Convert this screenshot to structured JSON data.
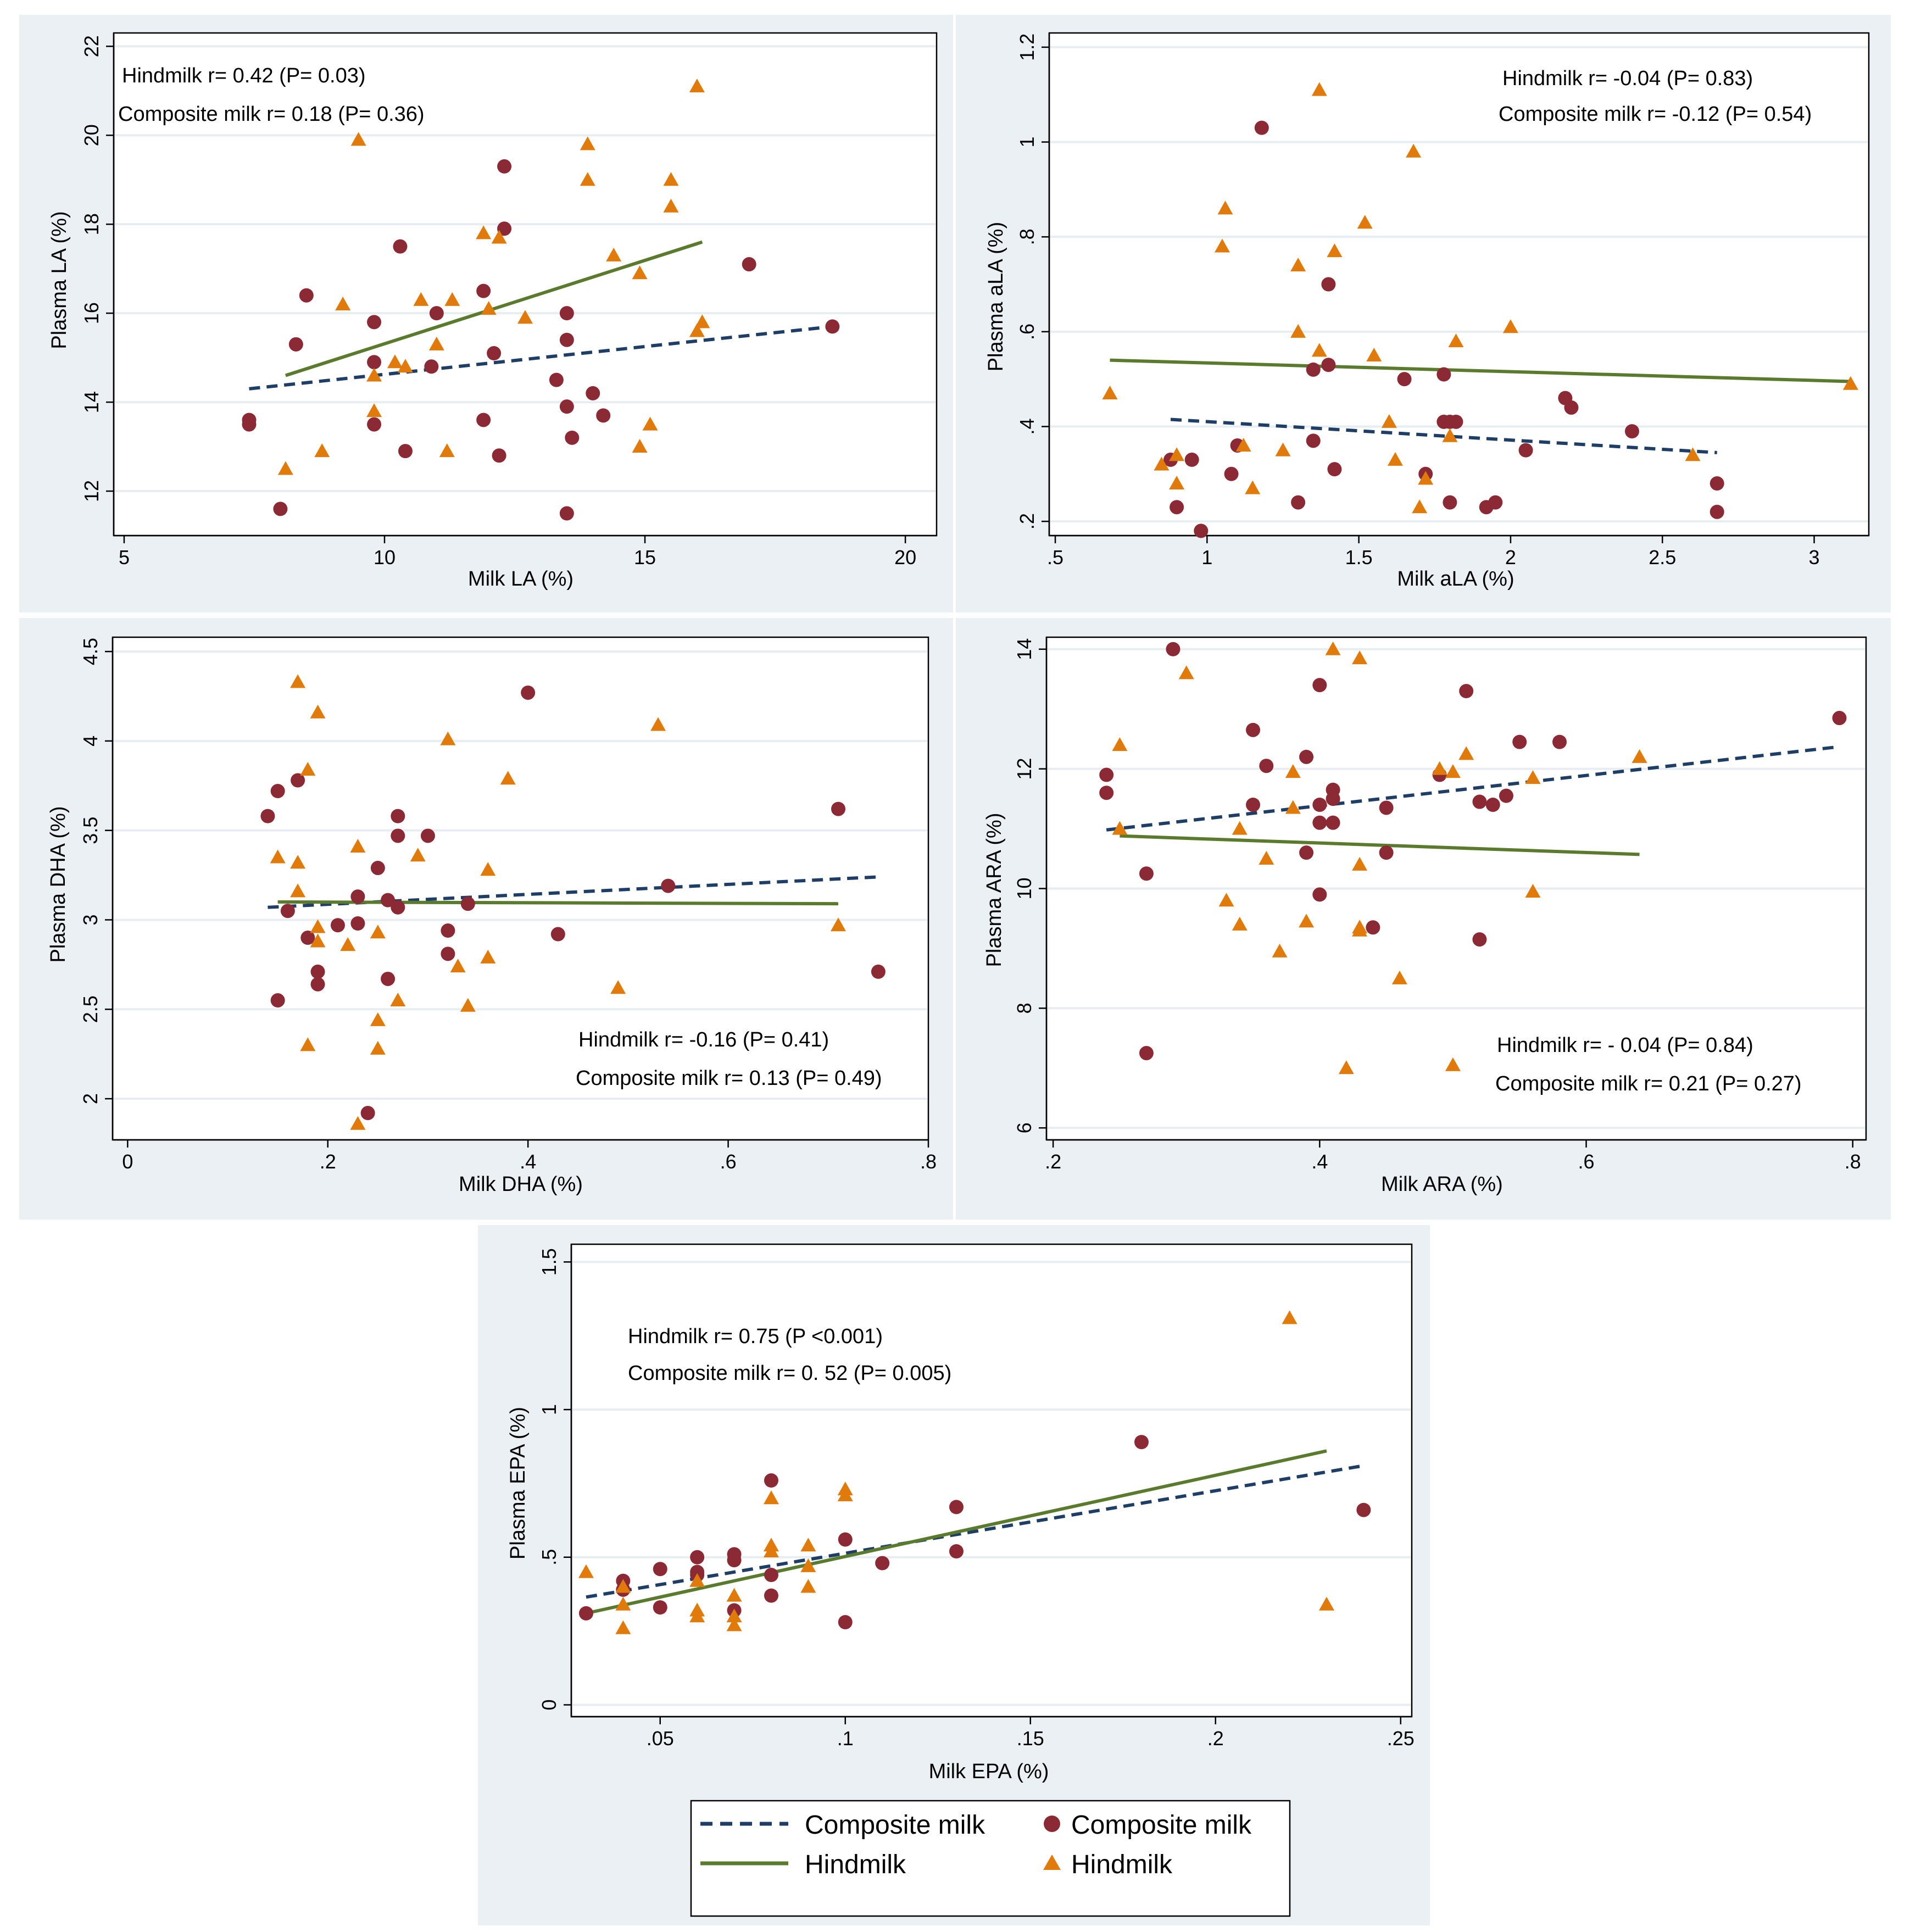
{
  "colors": {
    "composite_marker": "#8b2a34",
    "hindmilk_marker": "#e07b0b",
    "composite_line": "#1f3e66",
    "hindmilk_line": "#5a7a2e",
    "panel_background": "#eaf0f3"
  },
  "legend": {
    "composite_line_label": "Composite milk",
    "composite_marker_label": "Composite milk",
    "hindmilk_line_label": "Hindmilk",
    "hindmilk_marker_label": "Hindmilk"
  },
  "chart_data": [
    {
      "type": "scatter",
      "id": "la",
      "xlabel": "Milk LA (%)",
      "ylabel": "Plasma LA (%)",
      "xlim": [
        4.8,
        20.6
      ],
      "ylim": [
        11.0,
        22.3
      ],
      "xticks": [
        5,
        10,
        15,
        20
      ],
      "xtick_labels": [
        "5",
        "10",
        "15",
        "20"
      ],
      "yticks": [
        12,
        14,
        16,
        18,
        20,
        22
      ],
      "ytick_labels": [
        "12",
        "14",
        "16",
        "18",
        "20",
        "22"
      ],
      "annotations": [
        "Hindmilk r= 0.42 (P= 0.03)",
        "Composite milk  r= 0.18 (P= 0.36)"
      ],
      "composite_points": [
        [
          7.4,
          13.6
        ],
        [
          7.4,
          13.5
        ],
        [
          8.0,
          11.6
        ],
        [
          8.3,
          15.3
        ],
        [
          8.5,
          16.4
        ],
        [
          9.8,
          14.9
        ],
        [
          9.8,
          15.8
        ],
        [
          9.8,
          13.5
        ],
        [
          10.3,
          17.5
        ],
        [
          10.4,
          12.9
        ],
        [
          10.9,
          14.8
        ],
        [
          11.0,
          16.0
        ],
        [
          11.9,
          16.5
        ],
        [
          11.9,
          13.6
        ],
        [
          12.1,
          15.1
        ],
        [
          12.2,
          12.8
        ],
        [
          12.3,
          17.9
        ],
        [
          12.3,
          19.3
        ],
        [
          13.3,
          14.5
        ],
        [
          13.5,
          16.0
        ],
        [
          13.5,
          15.4
        ],
        [
          13.5,
          13.9
        ],
        [
          13.5,
          11.5
        ],
        [
          13.6,
          13.2
        ],
        [
          14.0,
          14.2
        ],
        [
          14.2,
          13.7
        ],
        [
          17.0,
          17.1
        ],
        [
          18.6,
          15.7
        ]
      ],
      "hindmilk_points": [
        [
          8.1,
          12.5
        ],
        [
          8.8,
          12.9
        ],
        [
          9.2,
          16.2
        ],
        [
          9.5,
          19.9
        ],
        [
          9.8,
          14.6
        ],
        [
          9.8,
          13.8
        ],
        [
          10.2,
          14.9
        ],
        [
          10.4,
          14.8
        ],
        [
          10.7,
          16.3
        ],
        [
          11.0,
          15.3
        ],
        [
          11.2,
          12.9
        ],
        [
          11.3,
          16.3
        ],
        [
          11.9,
          17.8
        ],
        [
          12.0,
          16.1
        ],
        [
          12.2,
          17.7
        ],
        [
          12.7,
          15.9
        ],
        [
          13.9,
          19.8
        ],
        [
          13.9,
          19.0
        ],
        [
          14.4,
          17.3
        ],
        [
          14.9,
          16.9
        ],
        [
          14.9,
          13.0
        ],
        [
          15.1,
          13.5
        ],
        [
          15.5,
          19.0
        ],
        [
          15.5,
          18.4
        ],
        [
          16.0,
          21.1
        ],
        [
          16.0,
          15.6
        ],
        [
          16.1,
          15.8
        ]
      ],
      "composite_fit": [
        [
          7.4,
          14.3
        ],
        [
          18.6,
          15.7
        ]
      ],
      "hindmilk_fit": [
        [
          8.1,
          14.6
        ],
        [
          16.1,
          17.6
        ]
      ]
    },
    {
      "type": "scatter",
      "id": "ala",
      "xlabel": "Milk aLA (%)",
      "ylabel": "Plasma aLA (%)",
      "xlim": [
        0.48,
        3.18
      ],
      "ylim": [
        0.17,
        1.23
      ],
      "xticks": [
        0.5,
        1,
        1.5,
        2,
        2.5,
        3
      ],
      "xtick_labels": [
        ".5",
        "1",
        "1.5",
        "2",
        "2.5",
        "3"
      ],
      "yticks": [
        0.2,
        0.4,
        0.6,
        0.8,
        1.0,
        1.2
      ],
      "ytick_labels": [
        ".2",
        ".4",
        ".6",
        ".8",
        "1",
        "1.2"
      ],
      "annotations": [
        "Hindmilk r= -0.04 (P= 0.83)",
        "Composite milk r= -0.12 (P= 0.54)"
      ],
      "composite_points": [
        [
          0.88,
          0.33
        ],
        [
          0.9,
          0.23
        ],
        [
          0.95,
          0.33
        ],
        [
          0.98,
          0.18
        ],
        [
          1.08,
          0.3
        ],
        [
          1.1,
          0.36
        ],
        [
          1.18,
          1.03
        ],
        [
          1.3,
          0.24
        ],
        [
          1.35,
          0.37
        ],
        [
          1.35,
          0.52
        ],
        [
          1.4,
          0.53
        ],
        [
          1.4,
          0.7
        ],
        [
          1.42,
          0.31
        ],
        [
          1.65,
          0.5
        ],
        [
          1.72,
          0.3
        ],
        [
          1.78,
          0.51
        ],
        [
          1.78,
          0.41
        ],
        [
          1.8,
          0.41
        ],
        [
          1.82,
          0.41
        ],
        [
          1.8,
          0.24
        ],
        [
          1.92,
          0.23
        ],
        [
          1.95,
          0.24
        ],
        [
          2.05,
          0.35
        ],
        [
          2.18,
          0.46
        ],
        [
          2.2,
          0.44
        ],
        [
          2.4,
          0.39
        ],
        [
          2.68,
          0.28
        ],
        [
          2.68,
          0.22
        ]
      ],
      "hindmilk_points": [
        [
          0.68,
          0.47
        ],
        [
          0.85,
          0.32
        ],
        [
          0.9,
          0.34
        ],
        [
          0.9,
          0.28
        ],
        [
          1.05,
          0.78
        ],
        [
          1.06,
          0.86
        ],
        [
          1.12,
          0.36
        ],
        [
          1.15,
          0.27
        ],
        [
          1.25,
          0.35
        ],
        [
          1.3,
          0.74
        ],
        [
          1.3,
          0.6
        ],
        [
          1.37,
          1.11
        ],
        [
          1.37,
          0.56
        ],
        [
          1.42,
          0.77
        ],
        [
          1.52,
          0.83
        ],
        [
          1.55,
          0.55
        ],
        [
          1.6,
          0.41
        ],
        [
          1.62,
          0.33
        ],
        [
          1.68,
          0.98
        ],
        [
          1.7,
          0.23
        ],
        [
          1.72,
          0.29
        ],
        [
          1.8,
          0.38
        ],
        [
          1.82,
          0.58
        ],
        [
          2.0,
          0.61
        ],
        [
          2.6,
          0.34
        ],
        [
          3.12,
          0.49
        ]
      ],
      "composite_fit": [
        [
          0.88,
          0.415
        ],
        [
          2.68,
          0.345
        ]
      ],
      "hindmilk_fit": [
        [
          0.68,
          0.54
        ],
        [
          3.12,
          0.495
        ]
      ]
    },
    {
      "type": "scatter",
      "id": "dha",
      "xlabel": "Milk DHA (%)",
      "ylabel": "Plasma DHA (%)",
      "xlim": [
        -0.015,
        0.8
      ],
      "ylim": [
        1.77,
        4.58
      ],
      "xticks": [
        0,
        0.2,
        0.4,
        0.6,
        0.8
      ],
      "xtick_labels": [
        "0",
        ".2",
        ".4",
        ".6",
        ".8"
      ],
      "yticks": [
        2,
        2.5,
        3,
        3.5,
        4,
        4.5
      ],
      "ytick_labels": [
        "2",
        "2.5",
        "3",
        "3.5",
        "4",
        "4.5"
      ],
      "annotations": [
        "Hindmilk r= -0.16 (P= 0.41)",
        "Composite milk r= 0.13 (P= 0.49)"
      ],
      "composite_points": [
        [
          0.14,
          3.58
        ],
        [
          0.15,
          3.72
        ],
        [
          0.15,
          2.55
        ],
        [
          0.16,
          3.05
        ],
        [
          0.17,
          3.78
        ],
        [
          0.18,
          2.9
        ],
        [
          0.19,
          2.71
        ],
        [
          0.19,
          2.64
        ],
        [
          0.21,
          2.97
        ],
        [
          0.23,
          3.13
        ],
        [
          0.23,
          2.98
        ],
        [
          0.24,
          1.92
        ],
        [
          0.25,
          3.29
        ],
        [
          0.26,
          3.11
        ],
        [
          0.26,
          2.67
        ],
        [
          0.27,
          3.58
        ],
        [
          0.27,
          3.47
        ],
        [
          0.27,
          3.07
        ],
        [
          0.3,
          3.47
        ],
        [
          0.32,
          2.94
        ],
        [
          0.32,
          2.81
        ],
        [
          0.34,
          3.09
        ],
        [
          0.4,
          4.27
        ],
        [
          0.43,
          2.92
        ],
        [
          0.54,
          3.19
        ],
        [
          0.71,
          3.62
        ],
        [
          0.75,
          2.71
        ]
      ],
      "hindmilk_points": [
        [
          0.15,
          3.35
        ],
        [
          0.17,
          4.33
        ],
        [
          0.17,
          3.32
        ],
        [
          0.17,
          3.16
        ],
        [
          0.18,
          3.84
        ],
        [
          0.18,
          2.3
        ],
        [
          0.19,
          4.16
        ],
        [
          0.19,
          2.96
        ],
        [
          0.19,
          2.88
        ],
        [
          0.22,
          2.86
        ],
        [
          0.23,
          3.41
        ],
        [
          0.23,
          1.86
        ],
        [
          0.25,
          2.93
        ],
        [
          0.25,
          2.44
        ],
        [
          0.25,
          2.28
        ],
        [
          0.27,
          2.55
        ],
        [
          0.29,
          3.36
        ],
        [
          0.32,
          4.01
        ],
        [
          0.33,
          2.74
        ],
        [
          0.34,
          2.52
        ],
        [
          0.36,
          3.28
        ],
        [
          0.36,
          2.79
        ],
        [
          0.38,
          3.79
        ],
        [
          0.49,
          2.62
        ],
        [
          0.53,
          4.09
        ],
        [
          0.71,
          2.97
        ]
      ],
      "composite_fit": [
        [
          0.14,
          3.07
        ],
        [
          0.75,
          3.24
        ]
      ],
      "hindmilk_fit": [
        [
          0.15,
          3.1
        ],
        [
          0.71,
          3.09
        ]
      ]
    },
    {
      "type": "scatter",
      "id": "ara",
      "xlabel": "Milk ARA (%)",
      "ylabel": "Plasma ARA (%)",
      "xlim": [
        0.195,
        0.81
      ],
      "ylim": [
        5.8,
        14.2
      ],
      "xticks": [
        0.2,
        0.4,
        0.6,
        0.8
      ],
      "xtick_labels": [
        ".2",
        ".4",
        ".6",
        ".8"
      ],
      "yticks": [
        6,
        8,
        10,
        12,
        14
      ],
      "ytick_labels": [
        "6",
        "8",
        "10",
        "12",
        "14"
      ],
      "annotations": [
        "Hindmilk r= - 0.04 (P= 0.84)",
        "Composite milk r= 0.21 (P= 0.27)"
      ],
      "composite_points": [
        [
          0.24,
          11.9
        ],
        [
          0.24,
          11.6
        ],
        [
          0.27,
          10.25
        ],
        [
          0.27,
          7.25
        ],
        [
          0.29,
          14.0
        ],
        [
          0.35,
          12.65
        ],
        [
          0.35,
          11.4
        ],
        [
          0.36,
          12.05
        ],
        [
          0.39,
          12.2
        ],
        [
          0.39,
          10.6
        ],
        [
          0.4,
          13.4
        ],
        [
          0.4,
          11.4
        ],
        [
          0.4,
          11.1
        ],
        [
          0.4,
          9.9
        ],
        [
          0.41,
          11.65
        ],
        [
          0.41,
          11.5
        ],
        [
          0.41,
          11.1
        ],
        [
          0.44,
          9.35
        ],
        [
          0.45,
          11.35
        ],
        [
          0.45,
          10.6
        ],
        [
          0.49,
          11.9
        ],
        [
          0.51,
          13.3
        ],
        [
          0.52,
          11.45
        ],
        [
          0.52,
          9.15
        ],
        [
          0.53,
          11.4
        ],
        [
          0.54,
          11.55
        ],
        [
          0.55,
          12.45
        ],
        [
          0.58,
          12.45
        ],
        [
          0.79,
          12.85
        ]
      ],
      "hindmilk_points": [
        [
          0.25,
          12.4
        ],
        [
          0.25,
          11.0
        ],
        [
          0.3,
          13.6
        ],
        [
          0.33,
          9.8
        ],
        [
          0.34,
          11.0
        ],
        [
          0.34,
          9.4
        ],
        [
          0.36,
          10.5
        ],
        [
          0.37,
          8.95
        ],
        [
          0.38,
          11.95
        ],
        [
          0.38,
          11.35
        ],
        [
          0.39,
          9.45
        ],
        [
          0.41,
          14.0
        ],
        [
          0.42,
          7.0
        ],
        [
          0.43,
          13.85
        ],
        [
          0.43,
          10.4
        ],
        [
          0.43,
          9.35
        ],
        [
          0.43,
          9.3
        ],
        [
          0.46,
          8.5
        ],
        [
          0.49,
          12.0
        ],
        [
          0.5,
          11.95
        ],
        [
          0.5,
          7.05
        ],
        [
          0.51,
          12.25
        ],
        [
          0.56,
          11.85
        ],
        [
          0.56,
          9.95
        ],
        [
          0.64,
          12.2
        ]
      ],
      "composite_fit": [
        [
          0.24,
          10.98
        ],
        [
          0.79,
          12.37
        ]
      ],
      "hindmilk_fit": [
        [
          0.25,
          10.88
        ],
        [
          0.64,
          10.57
        ]
      ]
    },
    {
      "type": "scatter",
      "id": "epa",
      "xlabel": "Milk EPA (%)",
      "ylabel": "Plasma EPA (%)",
      "xlim": [
        0.026,
        0.253
      ],
      "ylim": [
        -0.04,
        1.56
      ],
      "xticks": [
        0.05,
        0.1,
        0.15,
        0.2,
        0.25
      ],
      "xtick_labels": [
        ".05",
        ".1",
        ".15",
        ".2",
        ".25"
      ],
      "yticks": [
        0,
        0.5,
        1,
        1.5
      ],
      "ytick_labels": [
        "0",
        ".5",
        "1",
        "1.5"
      ],
      "annotations": [
        "Hindmilk r= 0.75 (P <0.001)",
        "Composite milk r= 0. 52 (P= 0.005)"
      ],
      "composite_points": [
        [
          0.03,
          0.31
        ],
        [
          0.04,
          0.42
        ],
        [
          0.04,
          0.39
        ],
        [
          0.05,
          0.46
        ],
        [
          0.05,
          0.33
        ],
        [
          0.06,
          0.5
        ],
        [
          0.06,
          0.45
        ],
        [
          0.06,
          0.44
        ],
        [
          0.07,
          0.51
        ],
        [
          0.07,
          0.49
        ],
        [
          0.07,
          0.32
        ],
        [
          0.08,
          0.76
        ],
        [
          0.08,
          0.44
        ],
        [
          0.08,
          0.37
        ],
        [
          0.1,
          0.56
        ],
        [
          0.1,
          0.28
        ],
        [
          0.11,
          0.48
        ],
        [
          0.13,
          0.67
        ],
        [
          0.13,
          0.52
        ],
        [
          0.18,
          0.89
        ],
        [
          0.24,
          0.66
        ]
      ],
      "hindmilk_points": [
        [
          0.03,
          0.45
        ],
        [
          0.04,
          0.4
        ],
        [
          0.04,
          0.34
        ],
        [
          0.04,
          0.26
        ],
        [
          0.06,
          0.42
        ],
        [
          0.06,
          0.32
        ],
        [
          0.06,
          0.3
        ],
        [
          0.07,
          0.37
        ],
        [
          0.07,
          0.3
        ],
        [
          0.07,
          0.27
        ],
        [
          0.08,
          0.7
        ],
        [
          0.08,
          0.54
        ],
        [
          0.08,
          0.52
        ],
        [
          0.09,
          0.54
        ],
        [
          0.09,
          0.47
        ],
        [
          0.09,
          0.4
        ],
        [
          0.1,
          0.73
        ],
        [
          0.1,
          0.71
        ],
        [
          0.22,
          1.31
        ],
        [
          0.23,
          0.34
        ]
      ],
      "composite_fit": [
        [
          0.03,
          0.365
        ],
        [
          0.24,
          0.81
        ]
      ],
      "hindmilk_fit": [
        [
          0.03,
          0.31
        ],
        [
          0.23,
          0.86
        ]
      ]
    }
  ]
}
